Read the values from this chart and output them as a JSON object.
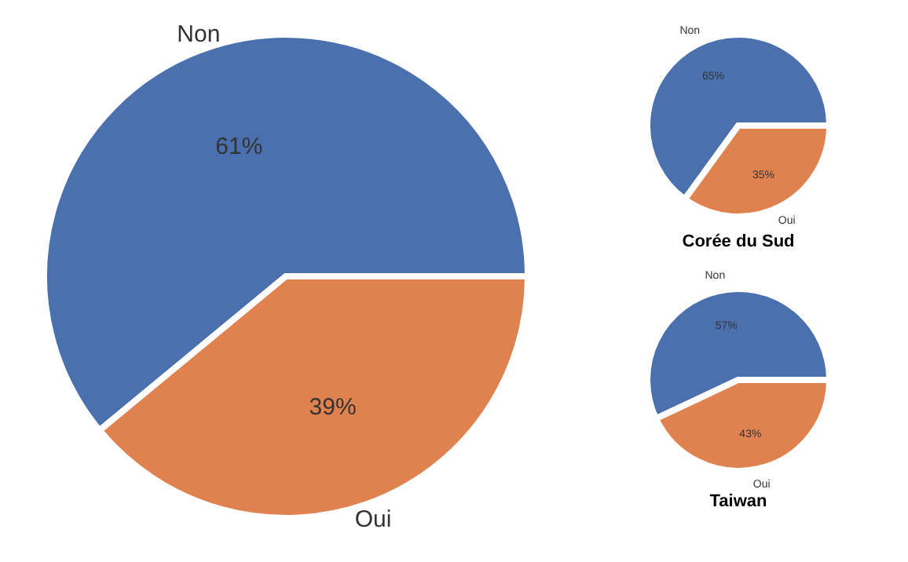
{
  "chart_data": [
    {
      "type": "pie",
      "categories": [
        "Non",
        "Oui"
      ],
      "values": [
        61,
        39
      ],
      "value_labels": [
        "61%",
        "39%"
      ],
      "colors": [
        "#4a70ad",
        "#df8250"
      ]
    },
    {
      "type": "pie",
      "title": "Corée du Sud",
      "categories": [
        "Non",
        "Oui"
      ],
      "values": [
        65,
        35
      ],
      "value_labels": [
        "65%",
        "35%"
      ],
      "colors": [
        "#4a70ad",
        "#df8250"
      ]
    },
    {
      "type": "pie",
      "title": "Taiwan",
      "categories": [
        "Non",
        "Oui"
      ],
      "values": [
        57,
        43
      ],
      "value_labels": [
        "57%",
        "43%"
      ],
      "colors": [
        "#4a70ad",
        "#df8250"
      ]
    }
  ]
}
